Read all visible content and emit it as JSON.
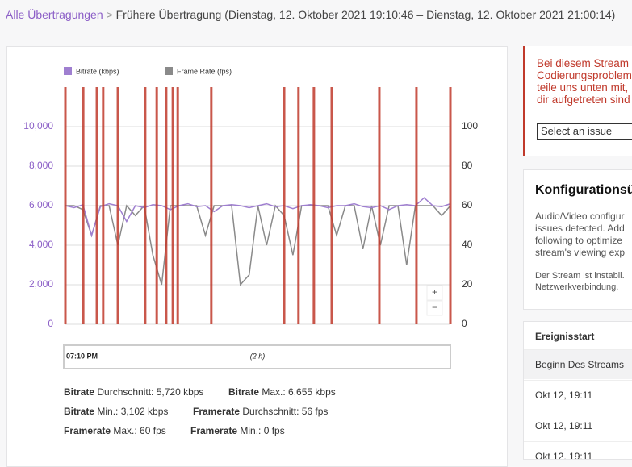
{
  "breadcrumb": {
    "link": "Alle Übertragungen",
    "separator": ">",
    "current": "Frühere Übertragung (Dienstag, 12. Oktober 2021 19:10:46 – Dienstag, 12. Oktober 2021 21:00:14)"
  },
  "chart_data": {
    "type": "line",
    "x": [
      0,
      2.5,
      5,
      7.5,
      10,
      12.5,
      15,
      17.5,
      20,
      22.5,
      25,
      27.5,
      30,
      32.5,
      35,
      37.5,
      40,
      42.5,
      45,
      47.5,
      50,
      52.5,
      55,
      57.5,
      60,
      62.5,
      65,
      67.5,
      70,
      72.5,
      75,
      77.5,
      80,
      82.5,
      85,
      87.5,
      90,
      92.5,
      95,
      97.5,
      100,
      102.5,
      105,
      107.5,
      110
    ],
    "xlim": [
      0,
      110
    ],
    "x_start_label": "07:10 PM",
    "x_span_label": "(2 h)",
    "series": [
      {
        "name": "Bitrate (kbps)",
        "color": "#9f7fd0",
        "values": [
          6000,
          5900,
          6050,
          4500,
          5950,
          6100,
          6000,
          5200,
          6000,
          5900,
          6050,
          6000,
          5800,
          6000,
          6100,
          5950,
          6000,
          5700,
          6000,
          6050,
          6000,
          5900,
          6000,
          6100,
          5950,
          6000,
          5850,
          6000,
          6050,
          6000,
          5900,
          6000,
          6000,
          6100,
          5950,
          5900,
          6000,
          5800,
          6000,
          6050,
          6000,
          6400,
          6000,
          5950,
          6100
        ]
      },
      {
        "name": "Frame Rate (fps)",
        "color": "#8a8a8a",
        "axis": "y2",
        "values": [
          60,
          60,
          58,
          45,
          60,
          60,
          40,
          60,
          55,
          60,
          35,
          20,
          60,
          60,
          60,
          60,
          45,
          60,
          60,
          60,
          20,
          25,
          60,
          40,
          60,
          55,
          35,
          60,
          60,
          60,
          60,
          45,
          60,
          60,
          38,
          60,
          40,
          60,
          60,
          30,
          60,
          60,
          60,
          55,
          60
        ]
      }
    ],
    "events": [
      0,
      5.1,
      9.0,
      10.8,
      15.0,
      22.8,
      26.1,
      28.8,
      30.7,
      32.1,
      41.7,
      62.5,
      66.6,
      71.0,
      76.1,
      89.7,
      100.3,
      110
    ],
    "event_color": "#c0392b",
    "ylim": [
      0,
      12000
    ],
    "yticks": [
      0,
      {
        "value": 2000,
        "label": "2,000"
      },
      {
        "value": 4000,
        "label": "4,000"
      },
      {
        "value": 6000,
        "label": "6,000"
      },
      {
        "value": 8000,
        "label": "8,000"
      },
      {
        "value": 10000,
        "label": "10,000"
      }
    ],
    "y2lim": [
      0,
      120
    ],
    "y2ticks": [
      0,
      20,
      40,
      60,
      80,
      100
    ],
    "grid": true,
    "zoom_in": "+",
    "zoom_out": "−"
  },
  "stats": [
    {
      "label": "Bitrate",
      "value": "Durchschnitt: 5,720 kbps"
    },
    {
      "label": "Bitrate",
      "value": "Max.: 6,655 kbps"
    },
    {
      "label": "Bitrate",
      "value": "Min.: 3,102 kbps"
    },
    {
      "label": "Framerate",
      "value": "Durchschnitt: 56 fps"
    },
    {
      "label": "Framerate",
      "value": "Max.: 60 fps"
    },
    {
      "label": "Framerate",
      "value": "Min.: 0 fps"
    }
  ],
  "alert": {
    "lines": [
      "Bei diesem Stream",
      "Codierungsproblem",
      "teile uns unten mit,",
      "dir aufgetreten sind"
    ],
    "select": "Select an issue"
  },
  "config": {
    "title": "Konfigurationsü",
    "lines": [
      "Audio/Video configur",
      "issues detected. Add",
      "following to optimize",
      "stream's viewing exp"
    ],
    "note": [
      "Der Stream ist instabil.",
      "Netzwerkverbindung."
    ]
  },
  "events_table": {
    "header": "Ereignisstart",
    "rows": [
      "Beginn Des Streams",
      "Okt 12, 19:11",
      "Okt 12, 19:11",
      "Okt 12, 19:11"
    ]
  }
}
